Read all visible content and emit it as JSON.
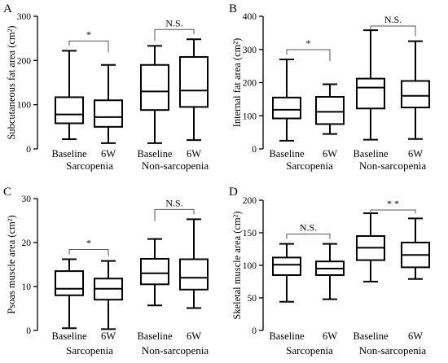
{
  "chart_data": [
    {
      "type": "boxplot",
      "panel": "A",
      "ylabel": "Subcutaneous fat area (cm²)",
      "ylim": [
        0,
        300
      ],
      "yticks": [
        0,
        100,
        200,
        300
      ],
      "categories": [
        "Baseline",
        "6W",
        "Baseline",
        "6W"
      ],
      "groups": [
        "Sarcopenia",
        "Non-sarcopenia"
      ],
      "boxes": [
        {
          "min": 22,
          "q1": 58,
          "median": 78,
          "q3": 117,
          "max": 222
        },
        {
          "min": 13,
          "q1": 50,
          "median": 72,
          "q3": 110,
          "max": 190
        },
        {
          "min": 13,
          "q1": 88,
          "median": 130,
          "q3": 190,
          "max": 233
        },
        {
          "min": 20,
          "q1": 95,
          "median": 132,
          "q3": 208,
          "max": 248
        }
      ],
      "comparisons": [
        {
          "label": "*",
          "between": [
            0,
            1
          ]
        },
        {
          "label": "N.S.",
          "between": [
            2,
            3
          ]
        }
      ]
    },
    {
      "type": "boxplot",
      "panel": "B",
      "ylabel": "Internal fat area (cm²)",
      "ylim": [
        0,
        400
      ],
      "yticks": [
        0,
        100,
        200,
        300,
        400
      ],
      "categories": [
        "Baseline",
        "6W",
        "Baseline",
        "6W"
      ],
      "groups": [
        "Sarcopenia",
        "Non-sarcopenia"
      ],
      "boxes": [
        {
          "min": 25,
          "q1": 92,
          "median": 118,
          "q3": 155,
          "max": 270
        },
        {
          "min": 45,
          "q1": 75,
          "median": 112,
          "q3": 157,
          "max": 195
        },
        {
          "min": 28,
          "q1": 122,
          "median": 185,
          "q3": 212,
          "max": 358
        },
        {
          "min": 30,
          "q1": 125,
          "median": 160,
          "q3": 205,
          "max": 325
        }
      ],
      "comparisons": [
        {
          "label": "*",
          "between": [
            0,
            1
          ]
        },
        {
          "label": "N.S.",
          "between": [
            2,
            3
          ]
        }
      ]
    },
    {
      "type": "boxplot",
      "panel": "C",
      "ylabel": "Psoas muscle area (cm²)",
      "ylim": [
        0,
        30
      ],
      "yticks": [
        0,
        10,
        20,
        30
      ],
      "categories": [
        "Baseline",
        "6W",
        "Baseline",
        "6W"
      ],
      "groups": [
        "Sarcopenia",
        "Non-sarcopenia"
      ],
      "boxes": [
        {
          "min": 0.5,
          "q1": 8,
          "median": 9.5,
          "q3": 13.5,
          "max": 16.2
        },
        {
          "min": 0.3,
          "q1": 7,
          "median": 9.5,
          "q3": 11.8,
          "max": 15.8
        },
        {
          "min": 5.7,
          "q1": 10.5,
          "median": 13,
          "q3": 16.3,
          "max": 20.8
        },
        {
          "min": 5.1,
          "q1": 9.3,
          "median": 12,
          "q3": 16.2,
          "max": 25.3
        }
      ],
      "comparisons": [
        {
          "label": "*",
          "between": [
            0,
            1
          ]
        },
        {
          "label": "N.S.",
          "between": [
            2,
            3
          ]
        }
      ]
    },
    {
      "type": "boxplot",
      "panel": "D",
      "ylabel": "Skeletal muscle area (cm²)",
      "ylim": [
        0,
        200
      ],
      "yticks": [
        0,
        50,
        100,
        150,
        200
      ],
      "categories": [
        "Baseline",
        "6W",
        "Baseline",
        "6W"
      ],
      "groups": [
        "Sarcopenia",
        "Non-sarcopenia"
      ],
      "boxes": [
        {
          "min": 44,
          "q1": 85,
          "median": 101,
          "q3": 112,
          "max": 133
        },
        {
          "min": 48,
          "q1": 85,
          "median": 95,
          "q3": 106,
          "max": 133
        },
        {
          "min": 75,
          "q1": 108,
          "median": 127,
          "q3": 145,
          "max": 180
        },
        {
          "min": 79,
          "q1": 97,
          "median": 116,
          "q3": 135,
          "max": 172
        }
      ],
      "comparisons": [
        {
          "label": "N.S.",
          "between": [
            0,
            1
          ]
        },
        {
          "label": "* *",
          "between": [
            2,
            3
          ]
        }
      ]
    }
  ]
}
